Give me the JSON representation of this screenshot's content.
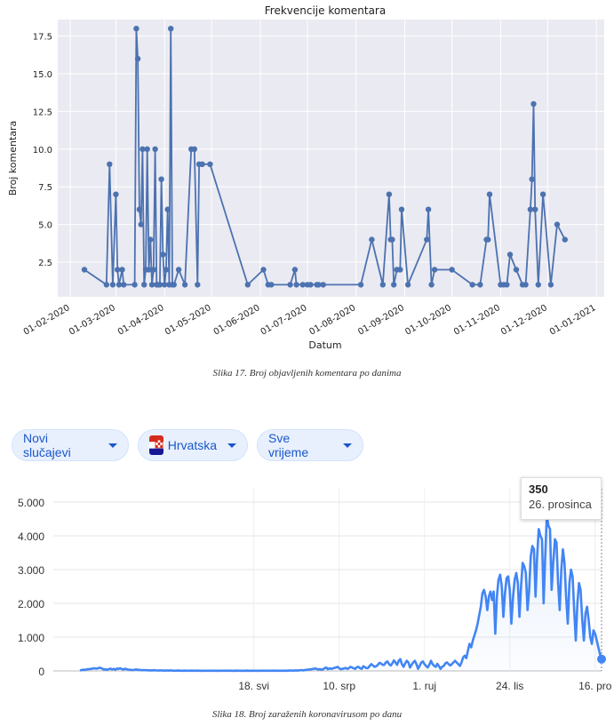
{
  "figure1": {
    "caption": "Slika 17. Broj objavljenih komentara po danima",
    "chart_data": {
      "type": "line",
      "title": "Frekvencije komentara",
      "xlabel": "Datum",
      "ylabel": "Broj komentara",
      "x_ticks": [
        "01-02-2020",
        "01-03-2020",
        "01-04-2020",
        "01-05-2020",
        "01-06-2020",
        "01-07-2020",
        "01-08-2020",
        "01-09-2020",
        "01-10-2020",
        "01-11-2020",
        "01-12-2020",
        "01-01-2021"
      ],
      "y_ticks": [
        "2.5",
        "5.0",
        "7.5",
        "10.0",
        "12.5",
        "15.0",
        "17.5"
      ],
      "ylim": [
        0.2,
        18.6
      ],
      "grid": true,
      "series": [
        {
          "points": [
            [
              "2020-02-10",
              2
            ],
            [
              "2020-02-24",
              1
            ],
            [
              "2020-02-26",
              9
            ],
            [
              "2020-02-28",
              1
            ],
            [
              "2020-03-01",
              7
            ],
            [
              "2020-03-02",
              2
            ],
            [
              "2020-03-03",
              1
            ],
            [
              "2020-03-05",
              2
            ],
            [
              "2020-03-06",
              1
            ],
            [
              "2020-03-13",
              1
            ],
            [
              "2020-03-14",
              18
            ],
            [
              "2020-03-15",
              16
            ],
            [
              "2020-03-16",
              6
            ],
            [
              "2020-03-17",
              5
            ],
            [
              "2020-03-18",
              10
            ],
            [
              "2020-03-19",
              1
            ],
            [
              "2020-03-20",
              2
            ],
            [
              "2020-03-21",
              10
            ],
            [
              "2020-03-22",
              2
            ],
            [
              "2020-03-23",
              4
            ],
            [
              "2020-03-24",
              1
            ],
            [
              "2020-03-25",
              2
            ],
            [
              "2020-03-26",
              10
            ],
            [
              "2020-03-27",
              1
            ],
            [
              "2020-03-28",
              1
            ],
            [
              "2020-03-29",
              1
            ],
            [
              "2020-03-30",
              8
            ],
            [
              "2020-03-31",
              3
            ],
            [
              "2020-04-01",
              1
            ],
            [
              "2020-04-02",
              2
            ],
            [
              "2020-04-03",
              6
            ],
            [
              "2020-04-04",
              1
            ],
            [
              "2020-04-05",
              18
            ],
            [
              "2020-04-06",
              1
            ],
            [
              "2020-04-07",
              1
            ],
            [
              "2020-04-10",
              2
            ],
            [
              "2020-04-14",
              1
            ],
            [
              "2020-04-18",
              10
            ],
            [
              "2020-04-20",
              10
            ],
            [
              "2020-04-22",
              1
            ],
            [
              "2020-04-23",
              9
            ],
            [
              "2020-04-25",
              9
            ],
            [
              "2020-04-30",
              9
            ],
            [
              "2020-05-24",
              1
            ],
            [
              "2020-06-03",
              2
            ],
            [
              "2020-06-06",
              1
            ],
            [
              "2020-06-08",
              1
            ],
            [
              "2020-06-20",
              1
            ],
            [
              "2020-06-23",
              2
            ],
            [
              "2020-06-24",
              1
            ],
            [
              "2020-06-28",
              1
            ],
            [
              "2020-07-01",
              1
            ],
            [
              "2020-07-03",
              1
            ],
            [
              "2020-07-07",
              1
            ],
            [
              "2020-07-08",
              1
            ],
            [
              "2020-07-11",
              1
            ],
            [
              "2020-08-04",
              1
            ],
            [
              "2020-08-11",
              4
            ],
            [
              "2020-08-18",
              1
            ],
            [
              "2020-08-22",
              7
            ],
            [
              "2020-08-23",
              4
            ],
            [
              "2020-08-24",
              4
            ],
            [
              "2020-08-25",
              1
            ],
            [
              "2020-08-27",
              2
            ],
            [
              "2020-08-29",
              2
            ],
            [
              "2020-08-30",
              6
            ],
            [
              "2020-09-03",
              1
            ],
            [
              "2020-09-15",
              4
            ],
            [
              "2020-09-16",
              6
            ],
            [
              "2020-09-18",
              1
            ],
            [
              "2020-09-20",
              2
            ],
            [
              "2020-10-01",
              2
            ],
            [
              "2020-10-14",
              1
            ],
            [
              "2020-10-19",
              1
            ],
            [
              "2020-10-23",
              4
            ],
            [
              "2020-10-24",
              4
            ],
            [
              "2020-10-25",
              7
            ],
            [
              "2020-11-01",
              1
            ],
            [
              "2020-11-03",
              1
            ],
            [
              "2020-11-05",
              1
            ],
            [
              "2020-11-07",
              3
            ],
            [
              "2020-11-11",
              2
            ],
            [
              "2020-11-15",
              1
            ],
            [
              "2020-11-17",
              1
            ],
            [
              "2020-11-20",
              6
            ],
            [
              "2020-11-21",
              8
            ],
            [
              "2020-11-22",
              13
            ],
            [
              "2020-11-23",
              6
            ],
            [
              "2020-11-25",
              1
            ],
            [
              "2020-11-28",
              7
            ],
            [
              "2020-12-03",
              1
            ],
            [
              "2020-12-07",
              5
            ],
            [
              "2020-12-12",
              4
            ]
          ]
        }
      ]
    }
  },
  "filters": {
    "chips": [
      {
        "label": "Novi slučajevi"
      },
      {
        "label": "Hrvatska"
      },
      {
        "label": "Sve vrijeme"
      }
    ]
  },
  "figure2": {
    "caption": "Slika 18. Broj zaraženih koronavirusom po danu",
    "tooltip": {
      "value": "350",
      "date": "26. prosinca"
    },
    "chart_data": {
      "type": "area",
      "y_ticks": [
        "0",
        "1.000",
        "2.000",
        "3.000",
        "4.000",
        "5.000"
      ],
      "ylim": [
        0,
        5000
      ],
      "x_ticks": [
        {
          "label": "18. svi",
          "day": 108
        },
        {
          "label": "10. srp",
          "day": 161
        },
        {
          "label": "1. ruj",
          "day": 214
        },
        {
          "label": "24. lis",
          "day": 267
        },
        {
          "label": "16. pro",
          "day": 320
        }
      ],
      "series": [
        {
          "values": [
            10,
            30,
            35,
            30,
            45,
            50,
            55,
            60,
            70,
            80,
            65,
            75,
            95,
            85,
            60,
            40,
            50,
            30,
            55,
            65,
            45,
            60,
            35,
            70,
            60,
            80,
            55,
            40,
            65,
            50,
            40,
            35,
            30,
            25,
            38,
            45,
            30,
            35,
            20,
            25,
            20,
            20,
            18,
            15,
            18,
            15,
            20,
            15,
            12,
            10,
            15,
            12,
            8,
            10,
            12,
            8,
            15,
            10,
            8,
            6,
            8,
            10,
            8,
            6,
            5,
            8,
            6,
            5,
            5,
            8,
            8,
            5,
            5,
            8,
            5,
            4,
            3,
            5,
            6,
            5,
            4,
            4,
            5,
            5,
            6,
            3,
            5,
            4,
            6,
            5,
            5,
            6,
            5,
            8,
            5,
            3,
            5,
            8,
            5,
            6,
            5,
            3,
            5,
            5,
            8,
            3,
            5,
            5,
            5,
            5,
            3,
            5,
            5,
            5,
            4,
            5,
            5,
            5,
            5,
            5,
            8,
            5,
            5,
            5,
            5,
            5,
            5,
            5,
            8,
            5,
            10,
            10,
            8,
            10,
            15,
            10,
            15,
            20,
            20,
            15,
            30,
            35,
            40,
            45,
            50,
            60,
            70,
            60,
            40,
            55,
            35,
            50,
            80,
            100,
            50,
            80,
            60,
            70,
            90,
            100,
            120,
            80,
            50,
            60,
            70,
            90,
            60,
            80,
            120,
            100,
            80,
            60,
            110,
            120,
            80,
            60,
            140,
            110,
            80,
            90,
            150,
            200,
            160,
            120,
            140,
            180,
            240,
            220,
            180,
            180,
            250,
            280,
            200,
            160,
            220,
            310,
            250,
            180,
            300,
            350,
            200,
            120,
            220,
            300,
            250,
            100,
            180,
            250,
            300,
            200,
            60,
            150,
            250,
            280,
            200,
            150,
            100,
            180,
            300,
            200,
            150,
            120,
            210,
            140,
            60,
            120,
            150,
            230,
            250,
            200,
            160,
            200,
            250,
            300,
            250,
            200,
            150,
            250,
            400,
            450,
            380,
            600,
            800,
            700,
            900,
            1050,
            1200,
            1400,
            1650,
            1900,
            2300,
            2400,
            2200,
            1800,
            2200,
            2350,
            2100,
            2350,
            1100,
            2200,
            2700,
            2850,
            2500,
            1600,
            2300,
            2750,
            2800,
            2400,
            1400,
            2200,
            2700,
            2900,
            2600,
            1600,
            2500,
            3200,
            3100,
            2900,
            1800,
            2400,
            3400,
            3700,
            3600,
            2200,
            3400,
            4200,
            4000,
            3900,
            2000,
            3400,
            4600,
            4300,
            4200,
            2400,
            3200,
            3900,
            3800,
            2600,
            1800,
            3000,
            3600,
            3200,
            2200,
            1400,
            2600,
            3000,
            2800,
            1800,
            900,
            2000,
            2600,
            2400,
            1500,
            900,
            1700,
            1900,
            1500,
            1000,
            800,
            1200,
            1100,
            900,
            700,
            500,
            350
          ]
        }
      ]
    }
  }
}
